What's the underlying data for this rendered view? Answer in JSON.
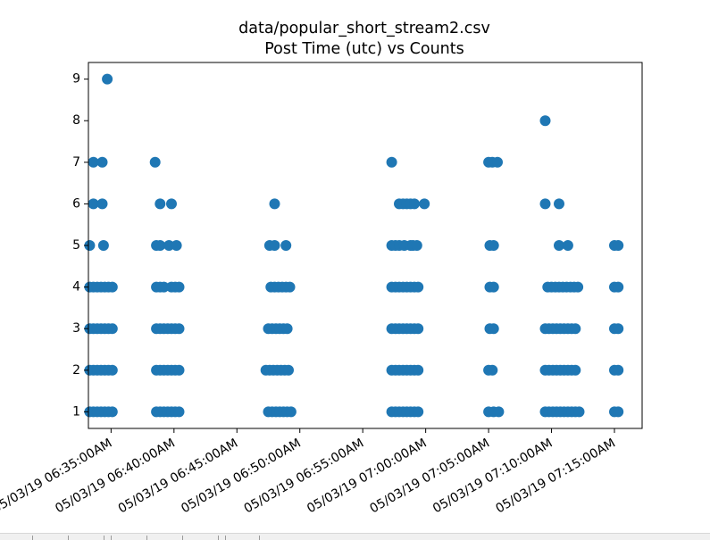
{
  "chart_data": {
    "type": "scatter",
    "title": "data/popular_short_stream2.csv",
    "subtitle": "Post Time (utc) vs Counts",
    "xlabel": "",
    "ylabel": "",
    "ylim": [
      0.6,
      9.4
    ],
    "xlim": [
      33.2,
      77.2
    ],
    "x_unit": "minutes past 06:00 on 05/03/19",
    "grid": false,
    "marker_color": "#1f77b4",
    "yticks": [
      "1",
      "2",
      "3",
      "4",
      "5",
      "6",
      "7",
      "8",
      "9"
    ],
    "ytick_values": [
      1,
      2,
      3,
      4,
      5,
      6,
      7,
      8,
      9
    ],
    "xtick_values": [
      35,
      40,
      45,
      50,
      55,
      60,
      65,
      70,
      75
    ],
    "xticks": [
      "05/03/19 06:35:00AM",
      "05/03/19 06:40:00AM",
      "05/03/19 06:45:00AM",
      "05/03/19 06:50:00AM",
      "05/03/19 06:55:00AM",
      "05/03/19 07:00:00AM",
      "05/03/19 07:05:00AM",
      "05/03/19 07:10:00AM",
      "05/03/19 07:15:00AM"
    ],
    "points": [
      [
        33.3,
        1
      ],
      [
        33.6,
        1
      ],
      [
        33.9,
        1
      ],
      [
        34.2,
        1
      ],
      [
        34.5,
        1
      ],
      [
        34.8,
        1
      ],
      [
        35.1,
        1
      ],
      [
        33.3,
        2
      ],
      [
        33.6,
        2
      ],
      [
        33.9,
        2
      ],
      [
        34.2,
        2
      ],
      [
        34.5,
        2
      ],
      [
        34.8,
        2
      ],
      [
        35.1,
        2
      ],
      [
        33.3,
        3
      ],
      [
        33.6,
        3
      ],
      [
        33.9,
        3
      ],
      [
        34.2,
        3
      ],
      [
        34.5,
        3
      ],
      [
        34.8,
        3
      ],
      [
        35.1,
        3
      ],
      [
        33.3,
        4
      ],
      [
        33.6,
        4
      ],
      [
        33.9,
        4
      ],
      [
        34.2,
        4
      ],
      [
        34.5,
        4
      ],
      [
        34.8,
        4
      ],
      [
        35.1,
        4
      ],
      [
        33.3,
        5
      ],
      [
        34.4,
        5
      ],
      [
        33.6,
        6
      ],
      [
        34.3,
        6
      ],
      [
        33.6,
        7
      ],
      [
        34.3,
        7
      ],
      [
        34.7,
        9
      ],
      [
        38.6,
        1
      ],
      [
        38.9,
        1
      ],
      [
        39.2,
        1
      ],
      [
        39.5,
        1
      ],
      [
        39.8,
        1
      ],
      [
        40.1,
        1
      ],
      [
        40.4,
        1
      ],
      [
        38.6,
        2
      ],
      [
        38.9,
        2
      ],
      [
        39.2,
        2
      ],
      [
        39.5,
        2
      ],
      [
        39.8,
        2
      ],
      [
        40.1,
        2
      ],
      [
        40.4,
        2
      ],
      [
        38.6,
        3
      ],
      [
        38.9,
        3
      ],
      [
        39.2,
        3
      ],
      [
        39.5,
        3
      ],
      [
        39.8,
        3
      ],
      [
        40.1,
        3
      ],
      [
        40.4,
        3
      ],
      [
        38.6,
        4
      ],
      [
        38.9,
        4
      ],
      [
        39.2,
        4
      ],
      [
        39.8,
        4
      ],
      [
        40.1,
        4
      ],
      [
        40.4,
        4
      ],
      [
        38.6,
        5
      ],
      [
        38.9,
        5
      ],
      [
        39.6,
        5
      ],
      [
        40.2,
        5
      ],
      [
        38.9,
        6
      ],
      [
        39.8,
        6
      ],
      [
        38.5,
        7
      ],
      [
        47.5,
        1
      ],
      [
        47.8,
        1
      ],
      [
        48.1,
        1
      ],
      [
        48.4,
        1
      ],
      [
        48.7,
        1
      ],
      [
        49.0,
        1
      ],
      [
        49.3,
        1
      ],
      [
        47.3,
        2
      ],
      [
        47.6,
        2
      ],
      [
        47.9,
        2
      ],
      [
        48.2,
        2
      ],
      [
        48.5,
        2
      ],
      [
        48.8,
        2
      ],
      [
        49.1,
        2
      ],
      [
        47.5,
        3
      ],
      [
        47.8,
        3
      ],
      [
        48.1,
        3
      ],
      [
        48.4,
        3
      ],
      [
        48.7,
        3
      ],
      [
        49.0,
        3
      ],
      [
        47.7,
        4
      ],
      [
        48.0,
        4
      ],
      [
        48.3,
        4
      ],
      [
        48.6,
        4
      ],
      [
        48.9,
        4
      ],
      [
        49.2,
        4
      ],
      [
        47.6,
        5
      ],
      [
        48.0,
        5
      ],
      [
        48.9,
        5
      ],
      [
        48.0,
        6
      ],
      [
        57.3,
        1
      ],
      [
        57.6,
        1
      ],
      [
        57.9,
        1
      ],
      [
        58.2,
        1
      ],
      [
        58.5,
        1
      ],
      [
        58.8,
        1
      ],
      [
        59.1,
        1
      ],
      [
        59.4,
        1
      ],
      [
        57.3,
        2
      ],
      [
        57.6,
        2
      ],
      [
        57.9,
        2
      ],
      [
        58.2,
        2
      ],
      [
        58.5,
        2
      ],
      [
        58.8,
        2
      ],
      [
        59.1,
        2
      ],
      [
        59.4,
        2
      ],
      [
        57.3,
        3
      ],
      [
        57.6,
        3
      ],
      [
        57.9,
        3
      ],
      [
        58.2,
        3
      ],
      [
        58.5,
        3
      ],
      [
        58.8,
        3
      ],
      [
        59.1,
        3
      ],
      [
        59.4,
        3
      ],
      [
        57.3,
        4
      ],
      [
        57.6,
        4
      ],
      [
        57.9,
        4
      ],
      [
        58.2,
        4
      ],
      [
        58.5,
        4
      ],
      [
        58.8,
        4
      ],
      [
        59.1,
        4
      ],
      [
        59.4,
        4
      ],
      [
        57.3,
        5
      ],
      [
        57.6,
        5
      ],
      [
        57.9,
        5
      ],
      [
        58.3,
        5
      ],
      [
        58.8,
        5
      ],
      [
        59.0,
        5
      ],
      [
        59.3,
        5
      ],
      [
        57.9,
        6
      ],
      [
        58.2,
        6
      ],
      [
        58.5,
        6
      ],
      [
        58.8,
        6
      ],
      [
        59.1,
        6
      ],
      [
        59.9,
        6
      ],
      [
        57.3,
        7
      ],
      [
        65.0,
        1
      ],
      [
        65.4,
        1
      ],
      [
        65.8,
        1
      ],
      [
        65.0,
        2
      ],
      [
        65.3,
        2
      ],
      [
        65.1,
        3
      ],
      [
        65.4,
        3
      ],
      [
        65.1,
        4
      ],
      [
        65.4,
        4
      ],
      [
        65.1,
        5
      ],
      [
        65.4,
        5
      ],
      [
        65.0,
        7
      ],
      [
        65.3,
        7
      ],
      [
        65.7,
        7
      ],
      [
        69.5,
        1
      ],
      [
        69.8,
        1
      ],
      [
        70.1,
        1
      ],
      [
        70.4,
        1
      ],
      [
        70.7,
        1
      ],
      [
        71.0,
        1
      ],
      [
        71.3,
        1
      ],
      [
        71.6,
        1
      ],
      [
        71.9,
        1
      ],
      [
        72.2,
        1
      ],
      [
        69.5,
        2
      ],
      [
        69.8,
        2
      ],
      [
        70.1,
        2
      ],
      [
        70.4,
        2
      ],
      [
        70.7,
        2
      ],
      [
        71.0,
        2
      ],
      [
        71.3,
        2
      ],
      [
        71.6,
        2
      ],
      [
        71.9,
        2
      ],
      [
        69.5,
        3
      ],
      [
        69.8,
        3
      ],
      [
        70.1,
        3
      ],
      [
        70.4,
        3
      ],
      [
        70.7,
        3
      ],
      [
        71.0,
        3
      ],
      [
        71.3,
        3
      ],
      [
        71.6,
        3
      ],
      [
        71.9,
        3
      ],
      [
        69.7,
        4
      ],
      [
        70.0,
        4
      ],
      [
        70.3,
        4
      ],
      [
        70.6,
        4
      ],
      [
        70.9,
        4
      ],
      [
        71.2,
        4
      ],
      [
        71.5,
        4
      ],
      [
        71.8,
        4
      ],
      [
        72.1,
        4
      ],
      [
        70.6,
        5
      ],
      [
        71.3,
        5
      ],
      [
        69.5,
        6
      ],
      [
        70.6,
        6
      ],
      [
        69.5,
        8
      ],
      [
        75.0,
        1
      ],
      [
        75.3,
        1
      ],
      [
        75.0,
        2
      ],
      [
        75.3,
        2
      ],
      [
        75.0,
        3
      ],
      [
        75.3,
        3
      ],
      [
        75.0,
        4
      ],
      [
        75.3,
        4
      ],
      [
        75.0,
        5
      ],
      [
        75.3,
        5
      ]
    ]
  }
}
